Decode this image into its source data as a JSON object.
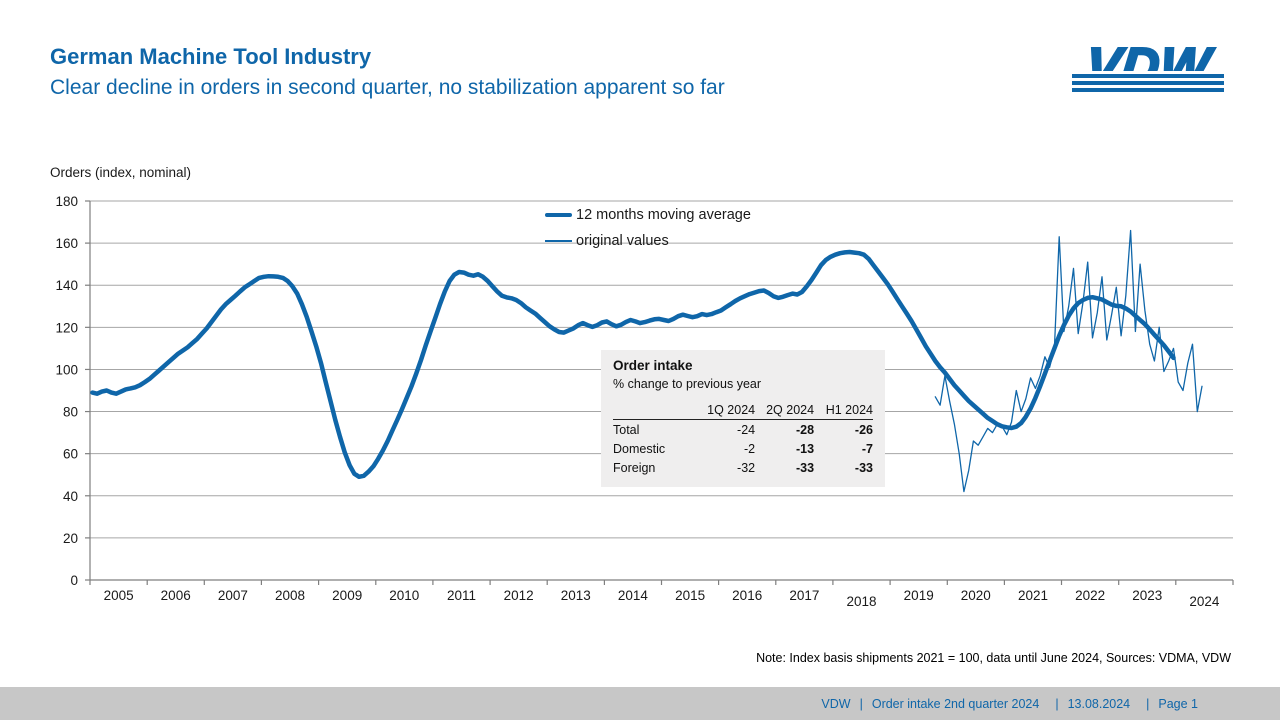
{
  "colors": {
    "accent": "#0f66a9",
    "grid": "#a6a6a6",
    "axis": "#7f7f7f",
    "table_bg": "#efeeee",
    "footer_bg": "#c7c7c7"
  },
  "header": {
    "title": "German Machine Tool Industry",
    "subtitle": "Clear decline in orders in second quarter, no stabilization apparent so far",
    "logo_text": "VDW"
  },
  "chart_data": {
    "type": "line",
    "axis_title": "Orders (index, nominal)",
    "ylabel": "Orders (index, nominal)",
    "ylim": [
      0,
      180
    ],
    "ytick_step": 20,
    "grid": true,
    "legend_position": "inside-top-center",
    "x_categories": [
      "2005",
      "2006",
      "2007",
      "2008",
      "2009",
      "2010",
      "2011",
      "2012",
      "2013",
      "2014",
      "2015",
      "2016",
      "2017",
      "2018",
      "2019",
      "2020",
      "2021",
      "2022",
      "2023",
      "2024"
    ],
    "staggered_labels": [
      "2018",
      "2024"
    ],
    "series": [
      {
        "name": "12 months moving average",
        "style": "thick",
        "start_year": 2005,
        "start_month": 1,
        "values": [
          89,
          88.5,
          89.5,
          90,
          89,
          88.5,
          89.5,
          90.5,
          91,
          91.5,
          92.5,
          94,
          95.5,
          97.5,
          99.5,
          101.5,
          103.5,
          105.5,
          107.5,
          109,
          110.5,
          112.5,
          114.5,
          117,
          119.5,
          122.5,
          125.5,
          128.5,
          131,
          133,
          135,
          137,
          139,
          140.5,
          142,
          143.5,
          144,
          144.3,
          144.2,
          144,
          143.5,
          142,
          139.5,
          136,
          131,
          125,
          118,
          111,
          103,
          94,
          85,
          76,
          68,
          60.5,
          54.5,
          50.5,
          49,
          49.5,
          51.5,
          54,
          57.5,
          61.5,
          66,
          71,
          76,
          81,
          86.5,
          92,
          98,
          104.5,
          111.5,
          118,
          124.5,
          131,
          137,
          142,
          145,
          146.3,
          146,
          145,
          144.5,
          145.2,
          144,
          142,
          139.5,
          137,
          135,
          134.2,
          133.8,
          133,
          131.5,
          129.5,
          128,
          126.5,
          124.5,
          122.5,
          120.5,
          119,
          117.8,
          117.5,
          118.5,
          119.5,
          121,
          122,
          121,
          120.2,
          121,
          122.3,
          122.8,
          121.5,
          120.5,
          121.2,
          122.5,
          123.5,
          122.8,
          122,
          122.5,
          123.2,
          123.8,
          124,
          123.5,
          123,
          124,
          125.3,
          126,
          125.4,
          124.8,
          125.3,
          126.3,
          125.8,
          126.3,
          127.2,
          128,
          129.5,
          131,
          132.5,
          133.8,
          134.8,
          135.8,
          136.5,
          137.2,
          137.5,
          136.3,
          134.8,
          134,
          134.5,
          135.3,
          136,
          135.6,
          136.8,
          139.5,
          142.5,
          146,
          149.5,
          152,
          153.5,
          154.5,
          155.2,
          155.6,
          155.8,
          155.5,
          155.2,
          154.5,
          152.5,
          149.5,
          146.5,
          143.5,
          140.5,
          137,
          133.5,
          130,
          126.5,
          123,
          119,
          115,
          111,
          107.5,
          104,
          101,
          98.5,
          95.5,
          92.5,
          90,
          87.5,
          85,
          83,
          81,
          79,
          77,
          75.5,
          74,
          73,
          72.5,
          72.2,
          72.8,
          74.5,
          77.5,
          81.5,
          86.5,
          92,
          98,
          104,
          110,
          116,
          121,
          125.5,
          129,
          131.5,
          133,
          134,
          134.3,
          133.8,
          133.2,
          132,
          130.8,
          130.2,
          130,
          129,
          127.5,
          125.5,
          123.5,
          121.5,
          119,
          116.5,
          114,
          111.5,
          108.5,
          105.5
        ]
      },
      {
        "name": "original values",
        "style": "thin",
        "start_year": 2019,
        "start_month": 10,
        "values": [
          87,
          83,
          97,
          85,
          74,
          60,
          42,
          52,
          66,
          64,
          68,
          72,
          70,
          74,
          73,
          69,
          75,
          90,
          80,
          86,
          96,
          91,
          97,
          106,
          101,
          110,
          163,
          118,
          130,
          148,
          117,
          132,
          151,
          115,
          127,
          144,
          114,
          126,
          139,
          116,
          135,
          166,
          118,
          150,
          128,
          112,
          104,
          120,
          99,
          104,
          110,
          94,
          90,
          103,
          112,
          80,
          92
        ]
      }
    ]
  },
  "table": {
    "title": "Order intake",
    "subtitle": "% change to previous year",
    "columns": [
      "",
      "1Q 2024",
      "2Q 2024",
      "H1 2024"
    ],
    "rows": [
      {
        "label": "Total",
        "values": [
          -24,
          -28,
          -26
        ]
      },
      {
        "label": "Domestic",
        "values": [
          -2,
          -13,
          -7
        ]
      },
      {
        "label": "Foreign",
        "values": [
          -32,
          -33,
          -33
        ]
      }
    ]
  },
  "note": "Note: Index basis shipments 2021 = 100, data until June 2024, Sources: VDMA, VDW",
  "footer": {
    "separator": "|",
    "items": [
      "VDW",
      "Order intake 2nd quarter 2024",
      "13.08.2024",
      "Page 1"
    ]
  }
}
